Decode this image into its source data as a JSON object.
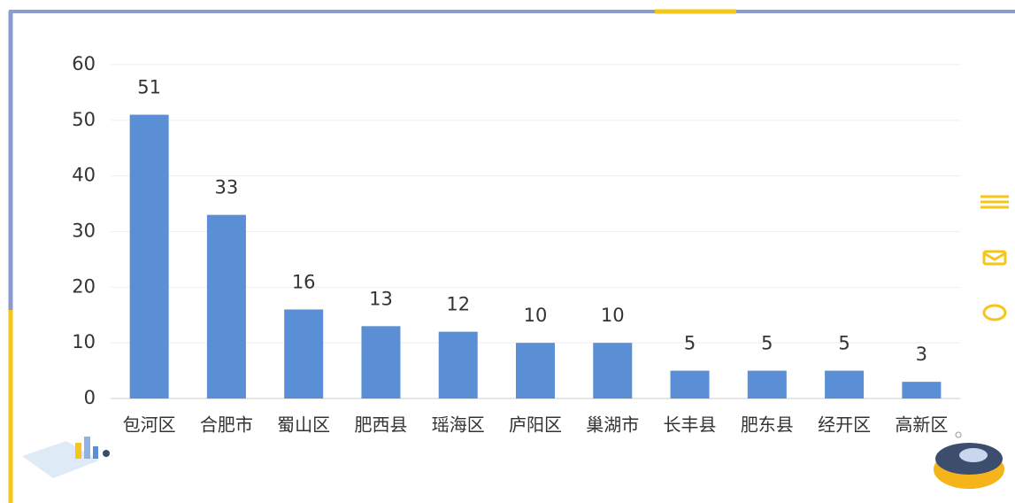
{
  "chart_data": {
    "type": "bar",
    "categories": [
      "包河区",
      "合肥市",
      "蜀山区",
      "肥西县",
      "瑶海区",
      "庐阳区",
      "巢湖市",
      "长丰县",
      "肥东县",
      "经开区",
      "高新区"
    ],
    "values": [
      51,
      33,
      16,
      13,
      12,
      10,
      10,
      5,
      5,
      5,
      3
    ],
    "color": "#5a8ed5",
    "ylim": [
      0,
      60
    ],
    "yticks": [
      0,
      10,
      20,
      30,
      40,
      50,
      60
    ],
    "grid": true,
    "data_labels": true
  }
}
